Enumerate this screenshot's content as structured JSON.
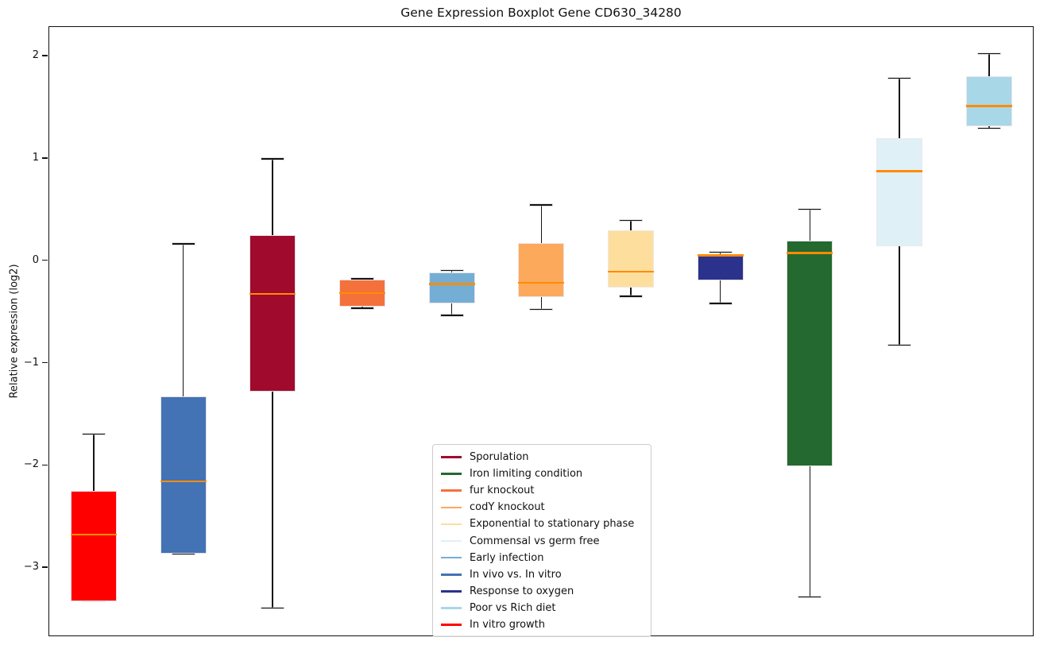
{
  "figure": {
    "title": "Gene Expression Boxplot Gene CD630_34280",
    "ylabel": "Relative expression (log2)"
  },
  "axis": {
    "yticks": [
      {
        "label": "2",
        "value": 2
      },
      {
        "label": "1",
        "value": 1
      },
      {
        "label": "0",
        "value": 0
      },
      {
        "label": "−1",
        "value": -1
      },
      {
        "label": "−2",
        "value": -2
      },
      {
        "label": "−3",
        "value": -3
      }
    ],
    "ylim": [
      -3.68,
      2.28
    ],
    "xticks_visible": false
  },
  "chart_data": {
    "type": "boxplot",
    "title": "Gene Expression Boxplot Gene CD630_34280",
    "xlabel": "",
    "ylabel": "Relative expression (log2)",
    "ylim": [
      -3.68,
      2.28
    ],
    "grid": false,
    "legend_position": "lower center-right inside axes",
    "median_color": "#FF8C00",
    "categories": [
      "In vitro growth",
      "In vivo vs. In vitro",
      "Sporulation",
      "fur knockout",
      "Early infection",
      "codY knockout",
      "Exponential to stationary phase",
      "Response to oxygen",
      "Iron limiting condition",
      "Commensal vs germ free",
      "Poor vs Rich diet"
    ],
    "series": [
      {
        "name": "In vitro growth",
        "color": "#FF0000",
        "whislo": -3.33,
        "q1": -3.33,
        "med": -2.68,
        "q3": -2.25,
        "whishi": -1.7
      },
      {
        "name": "In vivo vs. In vitro",
        "color": "#4372B5",
        "whislo": -2.87,
        "q1": -2.87,
        "med": -2.16,
        "q3": -1.33,
        "whishi": 0.16
      },
      {
        "name": "Sporulation",
        "color": "#A00A2D",
        "whislo": -3.4,
        "q1": -1.28,
        "med": -0.33,
        "q3": 0.25,
        "whishi": 0.99
      },
      {
        "name": "fur knockout",
        "color": "#F4713C",
        "whislo": -0.47,
        "q1": -0.45,
        "med": -0.32,
        "q3": -0.19,
        "whishi": -0.18
      },
      {
        "name": "Early infection",
        "color": "#74AED4",
        "whislo": -0.54,
        "q1": -0.42,
        "med": -0.23,
        "q3": -0.12,
        "whishi": -0.1
      },
      {
        "name": "codY knockout",
        "color": "#FCA95C",
        "whislo": -0.48,
        "q1": -0.36,
        "med": -0.22,
        "q3": 0.17,
        "whishi": 0.54
      },
      {
        "name": "Exponential to stationary phase",
        "color": "#FDDE9C",
        "whislo": -0.35,
        "q1": -0.27,
        "med": -0.11,
        "q3": 0.29,
        "whishi": 0.39
      },
      {
        "name": "Response to oxygen",
        "color": "#2B328C",
        "whislo": -0.42,
        "q1": -0.2,
        "med": 0.05,
        "q3": 0.06,
        "whishi": 0.08
      },
      {
        "name": "Iron limiting condition",
        "color": "#236930",
        "whislo": -3.29,
        "q1": -2.01,
        "med": 0.07,
        "q3": 0.19,
        "whishi": 0.5
      },
      {
        "name": "Commensal vs germ free",
        "color": "#E0F0F7",
        "whislo": -0.83,
        "q1": 0.14,
        "med": 0.87,
        "q3": 1.19,
        "whishi": 1.78
      },
      {
        "name": "Poor vs Rich diet",
        "color": "#A8D7E8",
        "whislo": 1.29,
        "q1": 1.31,
        "med": 1.51,
        "q3": 1.8,
        "whishi": 2.02
      }
    ]
  },
  "legend": {
    "items": [
      {
        "label": "Sporulation",
        "color": "#A00A2D"
      },
      {
        "label": "Iron limiting condition",
        "color": "#236930"
      },
      {
        "label": "fur knockout",
        "color": "#F4713C"
      },
      {
        "label": "codY knockout",
        "color": "#FCA95C"
      },
      {
        "label": "Exponential to stationary phase",
        "color": "#FDDE9C"
      },
      {
        "label": "Commensal vs germ free",
        "color": "#E0F0F7"
      },
      {
        "label": "Early infection",
        "color": "#74AED4"
      },
      {
        "label": "In vivo vs. In vitro",
        "color": "#4372B5"
      },
      {
        "label": "Response to oxygen",
        "color": "#2B328C"
      },
      {
        "label": "Poor vs Rich diet",
        "color": "#A8D7E8"
      },
      {
        "label": "In vitro growth",
        "color": "#FF0000"
      }
    ]
  }
}
